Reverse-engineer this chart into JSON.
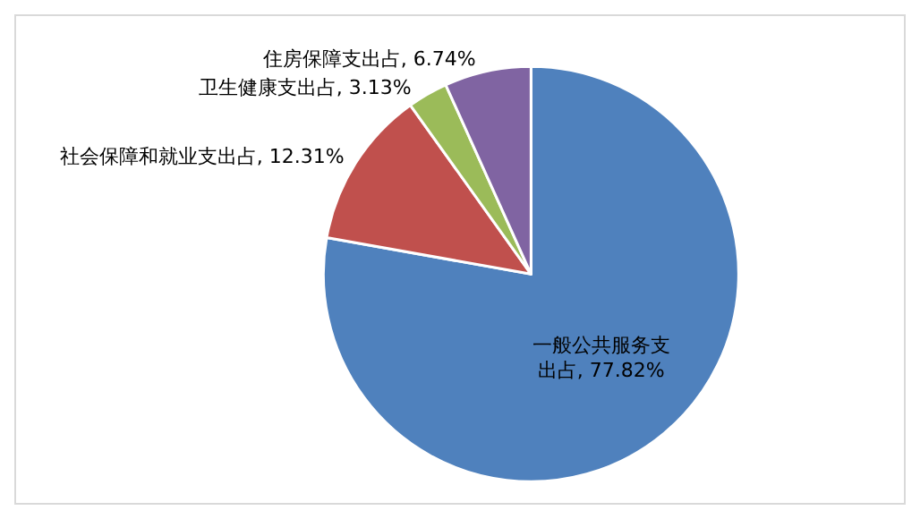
{
  "chart_data": {
    "type": "pie",
    "categories": [
      "一般公共服务支出占",
      "社会保障和就业支出占",
      "卫生健康支出占",
      "住房保障支出占"
    ],
    "value_labels": [
      "77.82%",
      "12.31%",
      "3.13%",
      "6.74%"
    ],
    "values": [
      77.82,
      12.31,
      3.13,
      6.74
    ],
    "colors": [
      "#4f81bd",
      "#c0504d",
      "#9bbb59",
      "#8064a2"
    ],
    "data_labels": true,
    "legend": false
  }
}
